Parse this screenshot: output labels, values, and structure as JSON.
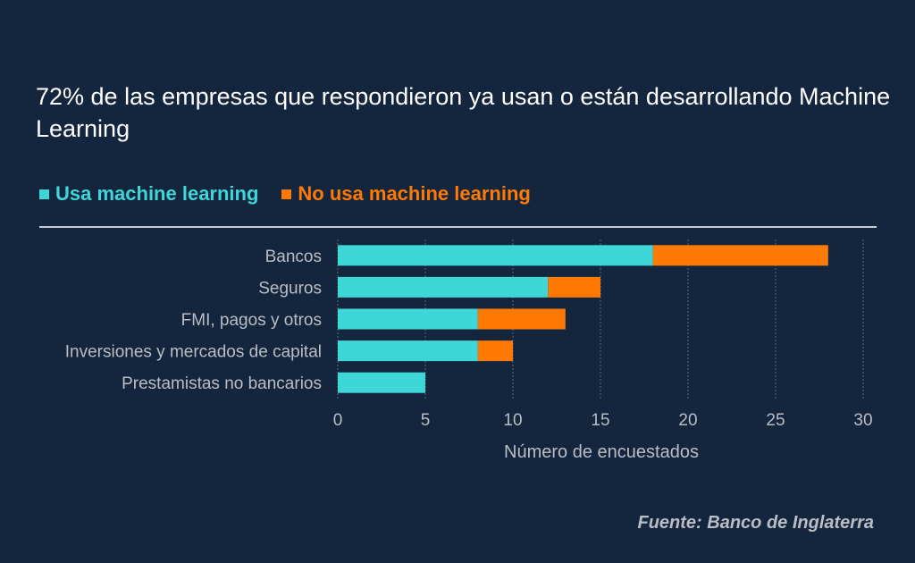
{
  "title": "72% de las empresas que respondieron ya usan o están desarrollando Machine Learning",
  "legend": {
    "usa_label": "Usa machine learning",
    "no_usa_label": "No usa machine learning"
  },
  "source": "Fuente: Banco de Inglaterra",
  "colors": {
    "usa": "#3fd6d8",
    "no_usa": "#ff7a05",
    "background": "#14263d",
    "grid": "#5b6675"
  },
  "chart_data": {
    "type": "bar",
    "orientation": "horizontal",
    "stacked": true,
    "categories": [
      "Bancos",
      "Seguros",
      "FMI, pagos y otros",
      "Inversiones y mercados de capital",
      "Prestamistas no bancarios"
    ],
    "series": [
      {
        "name": "Usa machine learning",
        "values": [
          18,
          12,
          8,
          8,
          5
        ]
      },
      {
        "name": "No usa machine learning",
        "values": [
          10,
          3,
          5,
          2,
          0
        ]
      }
    ],
    "xlabel": "Número de encuestados",
    "ylabel": "",
    "xlim": [
      0,
      30
    ],
    "xticks": [
      0,
      5,
      10,
      15,
      20,
      25,
      30
    ],
    "grid": "vertical",
    "legend_position": "top-left"
  }
}
